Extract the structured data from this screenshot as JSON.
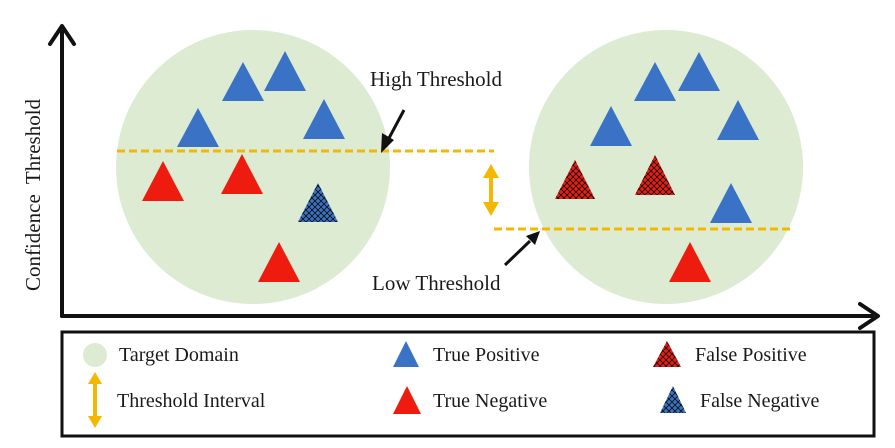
{
  "diagram": {
    "y_axis_label": "Confidence  Threshold",
    "annotations": {
      "high_threshold": "High Threshold",
      "low_threshold": "Low Threshold"
    },
    "colors": {
      "domain_fill": "#dcebd2",
      "true_positive": "#3a73c6",
      "true_negative": "#ee1c0f",
      "false_positive": "#ee1c0f",
      "false_negative": "#3a73c6",
      "threshold_line": "#f5b800",
      "axis": "#111111"
    }
  },
  "legend": {
    "items": [
      {
        "key": "target_domain",
        "label": "Target Domain",
        "icon": "green-circle-icon"
      },
      {
        "key": "true_positive",
        "label": "True Positive",
        "icon": "blue-triangle-icon"
      },
      {
        "key": "false_positive",
        "label": "False Positive",
        "icon": "hatched-red-triangle-icon"
      },
      {
        "key": "threshold_interval",
        "label": "Threshold Interval",
        "icon": "double-arrow-icon"
      },
      {
        "key": "true_negative",
        "label": "True Negative",
        "icon": "red-triangle-icon"
      },
      {
        "key": "false_negative",
        "label": "False Negative",
        "icon": "hatched-blue-triangle-icon"
      }
    ]
  }
}
